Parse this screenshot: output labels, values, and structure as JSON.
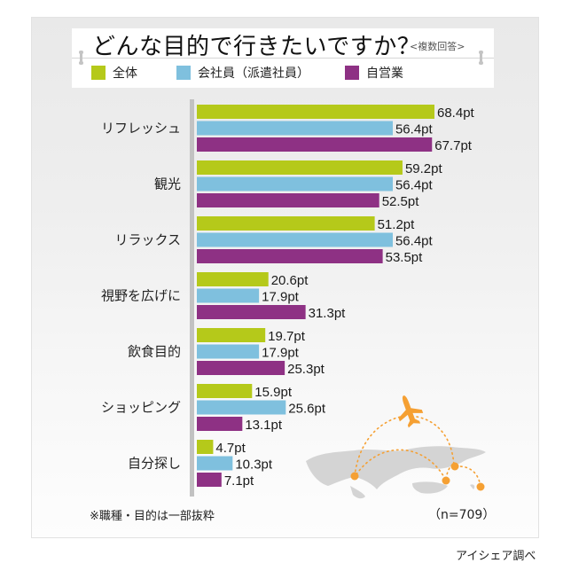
{
  "header": {
    "title": "どんな目的で行きたいですか？",
    "subtitle": "<複数回答>"
  },
  "legend": [
    {
      "label": "全体",
      "color": "#b5c91a"
    },
    {
      "label": "会社員（派遣社員）",
      "color": "#7fc0de"
    },
    {
      "label": "自営業",
      "color": "#8e3184"
    }
  ],
  "footer": {
    "note": "※職種・目的は一部抜粋",
    "sample_size": "（n=709）",
    "source": "アイシェア調べ"
  },
  "decoration": {
    "map_color": "#d4d4d4",
    "accent_color": "#f5a033"
  },
  "chart_data": {
    "type": "bar",
    "orientation": "horizontal",
    "title": "どんな目的で行きたいですか？",
    "subtitle": "<複数回答>",
    "unit": "pt",
    "categories": [
      "リフレッシュ",
      "観光",
      "リラックス",
      "視野を広げに",
      "飲食目的",
      "ショッピング",
      "自分探し"
    ],
    "series": [
      {
        "name": "全体",
        "color": "#b5c91a",
        "values": [
          68.4,
          59.2,
          51.2,
          20.6,
          19.7,
          15.9,
          4.7
        ]
      },
      {
        "name": "会社員（派遣社員）",
        "color": "#7fc0de",
        "values": [
          56.4,
          56.4,
          56.4,
          17.9,
          17.9,
          25.6,
          10.3
        ]
      },
      {
        "name": "自営業",
        "color": "#8e3184",
        "values": [
          67.7,
          52.5,
          53.5,
          31.3,
          25.3,
          13.1,
          7.1
        ]
      }
    ],
    "value_labels": [
      [
        "68.4pt",
        "59.2pt",
        "51.2pt",
        "20.6pt",
        "19.7pt",
        "15.9pt",
        "4.7pt"
      ],
      [
        "56.4pt",
        "56.4pt",
        "56.4pt",
        "17.9pt",
        "17.9pt",
        "25.6pt",
        "10.3pt"
      ],
      [
        "67.7pt",
        "52.5pt",
        "53.5pt",
        "31.3pt",
        "25.3pt",
        "13.1pt",
        "7.1pt"
      ]
    ],
    "xlim": [
      0,
      70
    ],
    "grid": false,
    "legend_position": "top",
    "note": "※職種・目的は一部抜粋",
    "sample_size": "n=709"
  }
}
